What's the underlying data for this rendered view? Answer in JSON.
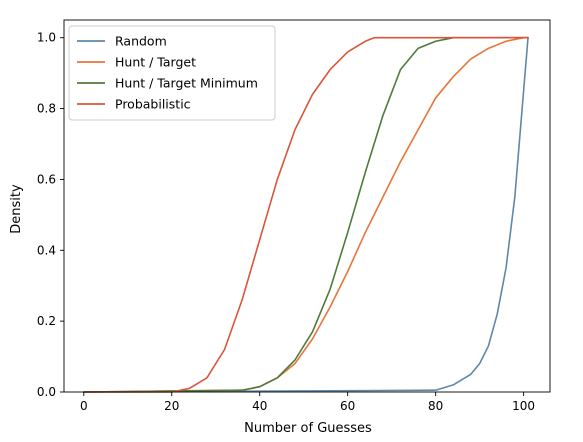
{
  "chart_data": {
    "type": "line",
    "title": "",
    "xlabel": "Number of Guesses",
    "ylabel": "Density",
    "xlim": [
      -4.5,
      106
    ],
    "ylim": [
      0,
      1.05
    ],
    "xticks": [
      0,
      20,
      40,
      60,
      80,
      100
    ],
    "yticks": [
      0.0,
      0.2,
      0.4,
      0.6,
      0.8,
      1.0
    ],
    "xtick_labels": [
      "0",
      "20",
      "40",
      "60",
      "80",
      "100"
    ],
    "ytick_labels": [
      "0.0",
      "0.2",
      "0.4",
      "0.6",
      "0.8",
      "1.0"
    ],
    "grid": false,
    "legend_position": "top-left",
    "series": [
      {
        "name": "Random",
        "color": "#5f87a8",
        "x": [
          0,
          80,
          84,
          88,
          90,
          92,
          94,
          96,
          98,
          100,
          101
        ],
        "y": [
          0.0,
          0.005,
          0.02,
          0.05,
          0.08,
          0.13,
          0.22,
          0.35,
          0.55,
          0.85,
          1.0
        ]
      },
      {
        "name": "Hunt / Target",
        "color": "#e8753a",
        "x": [
          0,
          36,
          40,
          44,
          48,
          52,
          56,
          60,
          64,
          68,
          72,
          76,
          80,
          84,
          88,
          92,
          96,
          100,
          101
        ],
        "y": [
          0.0,
          0.005,
          0.015,
          0.04,
          0.08,
          0.15,
          0.24,
          0.34,
          0.45,
          0.55,
          0.65,
          0.74,
          0.83,
          0.89,
          0.94,
          0.97,
          0.99,
          1.0,
          1.0
        ]
      },
      {
        "name": "Hunt / Target Minimum",
        "color": "#4f7a3a",
        "x": [
          0,
          36,
          40,
          44,
          48,
          52,
          56,
          60,
          64,
          68,
          72,
          76,
          80,
          84,
          101
        ],
        "y": [
          0.0,
          0.005,
          0.015,
          0.04,
          0.09,
          0.17,
          0.29,
          0.45,
          0.62,
          0.78,
          0.91,
          0.97,
          0.99,
          1.0,
          1.0
        ]
      },
      {
        "name": "Probabilistic",
        "color": "#d9563a",
        "x": [
          0,
          20,
          24,
          28,
          32,
          36,
          40,
          44,
          48,
          52,
          56,
          60,
          64,
          66,
          70,
          101
        ],
        "y": [
          0.0,
          0.0,
          0.01,
          0.04,
          0.12,
          0.26,
          0.43,
          0.6,
          0.74,
          0.84,
          0.91,
          0.96,
          0.99,
          1.0,
          1.0,
          1.0
        ]
      }
    ]
  }
}
